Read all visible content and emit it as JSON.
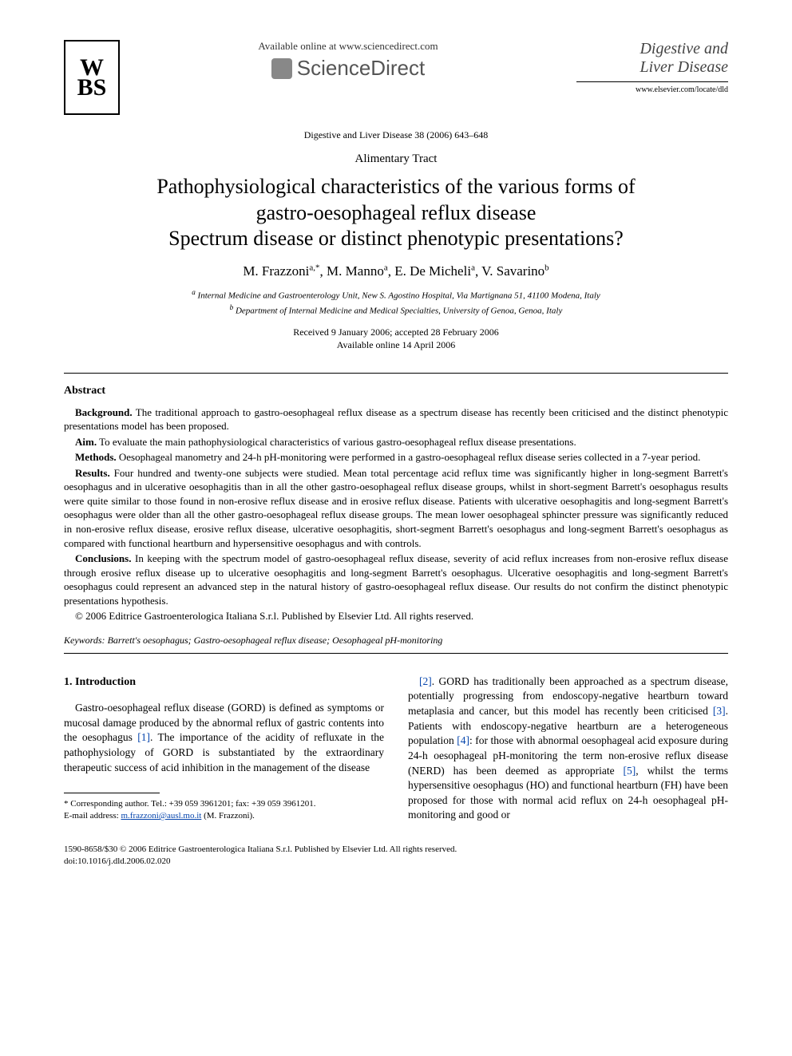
{
  "header": {
    "available_online": "Available online at www.sciencedirect.com",
    "sciencedirect": "ScienceDirect",
    "journal_name_line1": "Digestive and",
    "journal_name_line2": "Liver Disease",
    "elsevier_url": "www.elsevier.com/locate/dld",
    "publisher_logo_text": "W\nBS"
  },
  "citation": "Digestive and Liver Disease 38 (2006) 643–648",
  "section_label": "Alimentary Tract",
  "title_line1": "Pathophysiological characteristics of the various forms of",
  "title_line2": "gastro-oesophageal reflux disease",
  "title_line3": "Spectrum disease or distinct phenotypic presentations?",
  "authors": [
    {
      "name": "M. Frazzoni",
      "marks": "a,*"
    },
    {
      "name": "M. Manno",
      "marks": "a"
    },
    {
      "name": "E. De Micheli",
      "marks": "a"
    },
    {
      "name": "V. Savarino",
      "marks": "b"
    }
  ],
  "affiliations": {
    "a": "Internal Medicine and Gastroenterology Unit, New S. Agostino Hospital, Via Martignana 51, 41100 Modena, Italy",
    "b": "Department of Internal Medicine and Medical Specialties, University of Genoa, Genoa, Italy"
  },
  "dates": {
    "received_accepted": "Received 9 January 2006; accepted 28 February 2006",
    "online": "Available online 14 April 2006"
  },
  "abstract": {
    "heading": "Abstract",
    "background_label": "Background.",
    "background": "The traditional approach to gastro-oesophageal reflux disease as a spectrum disease has recently been criticised and the distinct phenotypic presentations model has been proposed.",
    "aim_label": "Aim.",
    "aim": "To evaluate the main pathophysiological characteristics of various gastro-oesophageal reflux disease presentations.",
    "methods_label": "Methods.",
    "methods": "Oesophageal manometry and 24-h pH-monitoring were performed in a gastro-oesophageal reflux disease series collected in a 7-year period.",
    "results_label": "Results.",
    "results": "Four hundred and twenty-one subjects were studied. Mean total percentage acid reflux time was significantly higher in long-segment Barrett's oesophagus and in ulcerative oesophagitis than in all the other gastro-oesophageal reflux disease groups, whilst in short-segment Barrett's oesophagus results were quite similar to those found in non-erosive reflux disease and in erosive reflux disease. Patients with ulcerative oesophagitis and long-segment Barrett's oesophagus were older than all the other gastro-oesophageal reflux disease groups. The mean lower oesophageal sphincter pressure was significantly reduced in non-erosive reflux disease, erosive reflux disease, ulcerative oesophagitis, short-segment Barrett's oesophagus and long-segment Barrett's oesophagus as compared with functional heartburn and hypersensitive oesophagus and with controls.",
    "conclusions_label": "Conclusions.",
    "conclusions": "In keeping with the spectrum model of gastro-oesophageal reflux disease, severity of acid reflux increases from non-erosive reflux disease through erosive reflux disease up to ulcerative oesophagitis and long-segment Barrett's oesophagus. Ulcerative oesophagitis and long-segment Barrett's oesophagus could represent an advanced step in the natural history of gastro-oesophageal reflux disease. Our results do not confirm the distinct phenotypic presentations hypothesis.",
    "copyright": "© 2006 Editrice Gastroenterologica Italiana S.r.l. Published by Elsevier Ltd. All rights reserved."
  },
  "keywords": {
    "label": "Keywords:",
    "text": "Barrett's oesophagus; Gastro-oesophageal reflux disease; Oesophageal pH-monitoring"
  },
  "introduction": {
    "heading": "1. Introduction",
    "col1": "Gastro-oesophageal reflux disease (GORD) is defined as symptoms or mucosal damage produced by the abnormal reflux of gastric contents into the oesophagus [1]. The importance of the acidity of refluxate in the pathophysiology of GORD is substantiated by the extraordinary therapeutic success of acid inhibition in the management of the disease",
    "col2": "[2]. GORD has traditionally been approached as a spectrum disease, potentially progressing from endoscopy-negative heartburn toward metaplasia and cancer, but this model has recently been criticised [3]. Patients with endoscopy-negative heartburn are a heterogeneous population [4]: for those with abnormal oesophageal acid exposure during 24-h oesophageal pH-monitoring the term non-erosive reflux disease (NERD) has been deemed as appropriate [5], whilst the terms hypersensitive oesophagus (HO) and functional heartburn (FH) have been proposed for those with normal acid reflux on 24-h oesophageal pH-monitoring and good or"
  },
  "footnote": {
    "corr": "* Corresponding author. Tel.: +39 059 3961201; fax: +39 059 3961201.",
    "email_label": "E-mail address:",
    "email": "m.frazzoni@ausl.mo.it",
    "email_person": "(M. Frazzoni)."
  },
  "footer": {
    "line1": "1590-8658/$30 © 2006 Editrice Gastroenterologica Italiana S.r.l. Published by Elsevier Ltd. All rights reserved.",
    "line2": "doi:10.1016/j.dld.2006.02.020"
  },
  "colors": {
    "text": "#000000",
    "link": "#0645ad",
    "background": "#ffffff",
    "logo_gray": "#888888",
    "sd_gray": "#555555"
  }
}
